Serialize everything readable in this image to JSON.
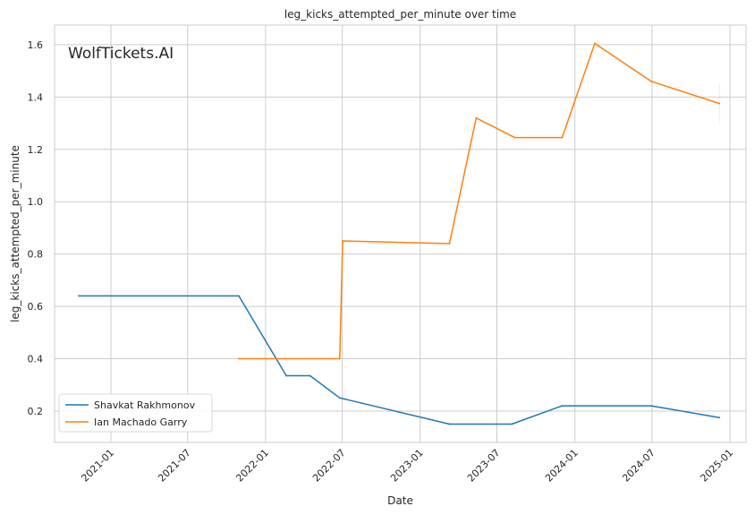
{
  "watermark": "WolfTickets.AI",
  "colors": {
    "series_0": "#1f77b4",
    "series_1": "#ff7f0e",
    "grid": "#cccccc",
    "axes_edge": "#cccccc",
    "watermark": "#bdbdbd"
  },
  "chart_data": {
    "type": "line",
    "title": "leg_kicks_attempted_per_minute over time",
    "xlabel": "Date",
    "ylabel": "leg_kicks_attempted_per_minute",
    "x_axis": "date",
    "xlim": [
      "2020-08-21",
      "2025-02-08"
    ],
    "ylim": [
      0.08,
      1.675
    ],
    "grid": true,
    "legend_position": "lower-left",
    "x_ticks": [
      {
        "date": "2021-01-01",
        "label": "2021-01"
      },
      {
        "date": "2021-07-01",
        "label": "2021-07"
      },
      {
        "date": "2022-01-01",
        "label": "2022-01"
      },
      {
        "date": "2022-07-01",
        "label": "2022-07"
      },
      {
        "date": "2023-01-01",
        "label": "2023-01"
      },
      {
        "date": "2023-07-01",
        "label": "2023-07"
      },
      {
        "date": "2024-01-01",
        "label": "2024-01"
      },
      {
        "date": "2024-07-01",
        "label": "2024-07"
      },
      {
        "date": "2025-01-01",
        "label": "2025-01"
      }
    ],
    "y_ticks": [
      {
        "value": 0.2,
        "label": "0.2"
      },
      {
        "value": 0.4,
        "label": "0.4"
      },
      {
        "value": 0.6,
        "label": "0.6"
      },
      {
        "value": 0.8,
        "label": "0.8"
      },
      {
        "value": 1.0,
        "label": "1.0"
      },
      {
        "value": 1.2,
        "label": "1.2"
      },
      {
        "value": 1.4,
        "label": "1.4"
      },
      {
        "value": 1.6,
        "label": "1.6"
      }
    ],
    "series": [
      {
        "name": "Shavkat Rakhmonov",
        "color": "#1f77b4",
        "points": [
          {
            "x": "2020-10-17",
            "y": 0.64
          },
          {
            "x": "2021-10-30",
            "y": 0.64
          },
          {
            "x": "2022-02-19",
            "y": 0.335
          },
          {
            "x": "2022-04-16",
            "y": 0.335
          },
          {
            "x": "2022-06-25",
            "y": 0.25
          },
          {
            "x": "2022-07-09",
            "y": 0.245
          },
          {
            "x": "2023-03-11",
            "y": 0.15
          },
          {
            "x": "2023-08-05",
            "y": 0.15
          },
          {
            "x": "2023-12-02",
            "y": 0.22
          },
          {
            "x": "2024-06-29",
            "y": 0.22
          },
          {
            "x": "2024-12-07",
            "y": 0.175
          }
        ]
      },
      {
        "name": "Ian Machado Garry",
        "color": "#ff7f0e",
        "points": [
          {
            "x": "2021-10-30",
            "y": 0.4
          },
          {
            "x": "2022-06-25",
            "y": 0.4
          },
          {
            "x": "2022-07-02",
            "y": 0.85
          },
          {
            "x": "2023-03-11",
            "y": 0.84
          },
          {
            "x": "2023-05-13",
            "y": 1.32
          },
          {
            "x": "2023-08-12",
            "y": 1.245
          },
          {
            "x": "2023-12-02",
            "y": 1.245
          },
          {
            "x": "2024-02-17",
            "y": 1.605
          },
          {
            "x": "2024-06-29",
            "y": 1.46
          },
          {
            "x": "2024-12-07",
            "y": 1.375
          }
        ]
      }
    ]
  }
}
